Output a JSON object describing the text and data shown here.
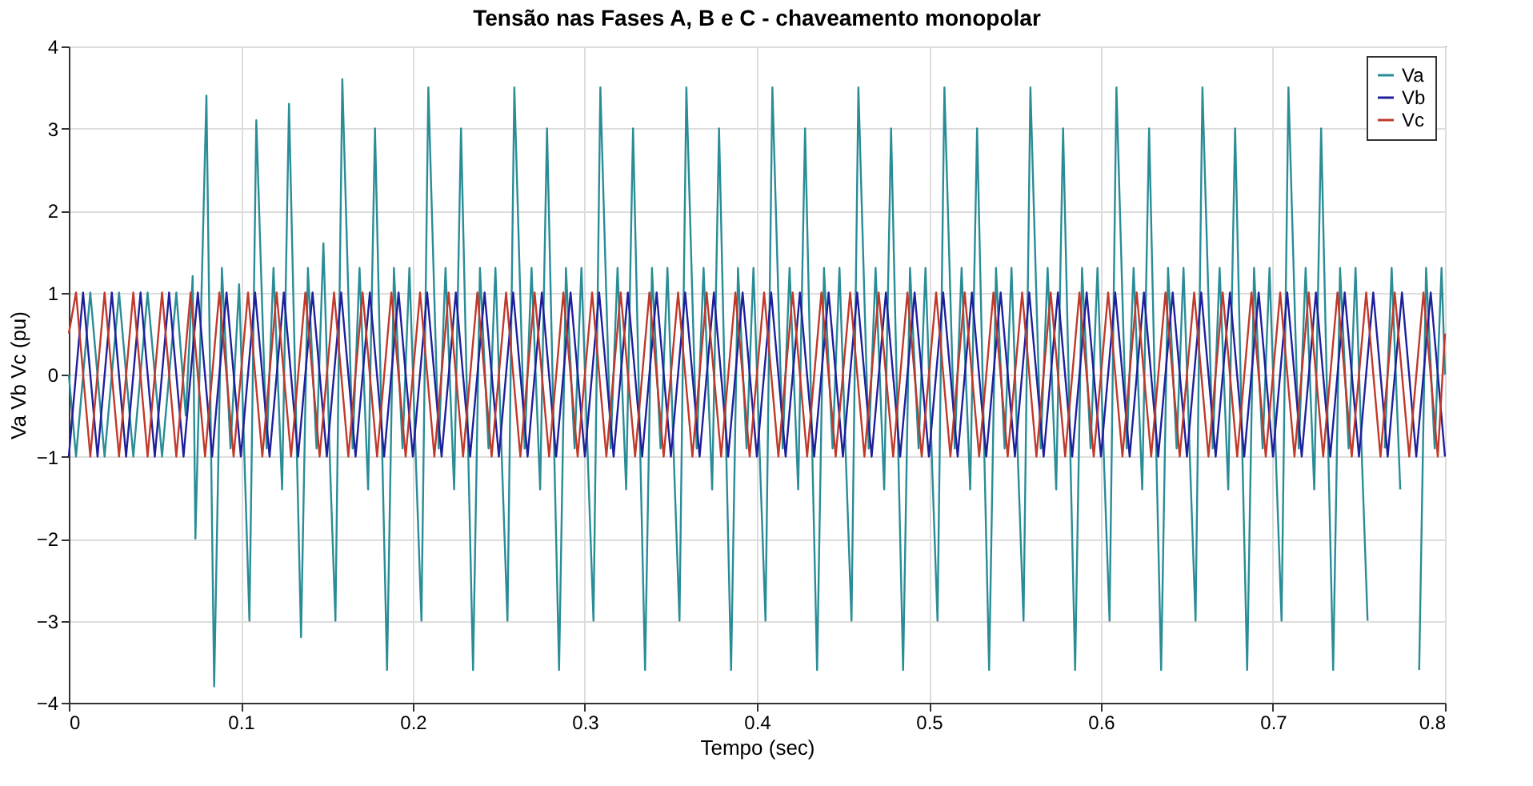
{
  "chart_data": {
    "type": "line",
    "title": "Tensão nas Fases A, B e C - chaveamento monopolar",
    "xlabel": "Tempo (sec)",
    "ylabel": "Va Vb Vc (pu)",
    "xlim": [
      0,
      0.8
    ],
    "xticks": [
      0,
      0.1,
      0.2,
      0.3,
      0.4,
      0.5,
      0.6,
      0.7,
      0.8
    ],
    "ylim": [
      -4,
      4
    ],
    "yticks": [
      -4,
      -3,
      -2,
      -1,
      0,
      1,
      2,
      3,
      4
    ],
    "grid": true,
    "legend": "top right",
    "marker": "none",
    "line_style": "solid",
    "series": [
      {
        "name": "Va",
        "color": "#2a8c96",
        "x": [
          0,
          0.0042,
          0.0125,
          0.0208,
          0.0292,
          0.0375,
          0.0458,
          0.0542,
          0.0625,
          0.068,
          0.072,
          0.0736,
          0.08,
          0.0845,
          0.089,
          0.094,
          0.099,
          0.105,
          0.109,
          0.115,
          0.119,
          0.124,
          0.128,
          0.135,
          0.139,
          0.144,
          0.148,
          0.152,
          0.155,
          0.159,
          0.165,
          0.169,
          0.174,
          0.178,
          0.185,
          0.189,
          0.194,
          0.198,
          0.202,
          0.205,
          0.209,
          0.215,
          0.219,
          0.224,
          0.228,
          0.235,
          0.239,
          0.244,
          0.248,
          0.252,
          0.255,
          0.259,
          0.265,
          0.269,
          0.274,
          0.278,
          0.285,
          0.289,
          0.294,
          0.298,
          0.302,
          0.305,
          0.309,
          0.315,
          0.319,
          0.324,
          0.328,
          0.335,
          0.339,
          0.344,
          0.348,
          0.352,
          0.355,
          0.359,
          0.365,
          0.369,
          0.374,
          0.378,
          0.385,
          0.389,
          0.394,
          0.398,
          0.402,
          0.405,
          0.409,
          0.415,
          0.419,
          0.424,
          0.428,
          0.435,
          0.439,
          0.444,
          0.448,
          0.452,
          0.455,
          0.459,
          0.465,
          0.469,
          0.474,
          0.478,
          0.485,
          0.489,
          0.494,
          0.498,
          0.502,
          0.505,
          0.509,
          0.515,
          0.519,
          0.524,
          0.528,
          0.535,
          0.539,
          0.544,
          0.548,
          0.552,
          0.555,
          0.559,
          0.565,
          0.569,
          0.574,
          0.578,
          0.585,
          0.589,
          0.594,
          0.598,
          0.602,
          0.605,
          0.609,
          0.615,
          0.619,
          0.624,
          0.628,
          0.635,
          0.639,
          0.644,
          0.648,
          0.652,
          0.655,
          0.659,
          0.665,
          0.669,
          0.674,
          0.678,
          0.685,
          0.689,
          0.694,
          0.698,
          0.702,
          0.705,
          0.709,
          0.715,
          0.719,
          0.724,
          0.728,
          0.735,
          0.739,
          0.744,
          0.748,
          0.752,
          0.755,
          0.759,
          0.765,
          0.769,
          0.774,
          0.778,
          0.785,
          0.789,
          0.794,
          0.798,
          0.8
        ],
        "values": [
          0,
          -1,
          1,
          -1,
          1,
          -1,
          1,
          -1,
          1,
          -0.5,
          1.2,
          -2.0,
          3.4,
          -3.8,
          1.3,
          -0.9,
          1.1,
          -3.0,
          3.1,
          -0.9,
          1.3,
          -1.4,
          3.3,
          -3.2,
          1.3,
          -0.9,
          1.6,
          -1.2,
          -3.0,
          3.6,
          -0.9,
          1.3,
          -1.4,
          3.0,
          -3.6,
          1.3,
          -0.9,
          1.3,
          -1.2,
          -3.0,
          3.5,
          -0.9,
          1.3,
          -1.4,
          3.0,
          -3.6,
          1.3,
          -0.9,
          1.3,
          -1.2,
          -3.0,
          3.5,
          -0.9,
          1.3,
          -1.4,
          3.0,
          -3.6,
          1.3,
          -0.9,
          1.3,
          -1.2,
          -3.0,
          3.5,
          -0.9,
          1.3,
          -1.4,
          3.0,
          -3.6,
          1.3,
          -0.9,
          1.3,
          -1.2,
          -3.0,
          3.5,
          -0.9,
          1.3,
          -1.4,
          3.0,
          -3.6,
          1.3,
          -0.9,
          1.3,
          -1.2,
          -3.0,
          3.5,
          -0.9,
          1.3,
          -1.4,
          3.0,
          -3.6,
          1.3,
          -0.9,
          1.3,
          -1.2,
          -3.0,
          3.5,
          -0.9,
          1.3,
          -1.4,
          3.0,
          -3.6,
          1.3,
          -0.9,
          1.3,
          -1.2,
          -3.0,
          3.5,
          -0.9,
          1.3,
          -1.4,
          3.0,
          -3.6,
          1.3,
          -0.9,
          1.3,
          -1.2,
          -3.0,
          3.5,
          -0.9,
          1.3,
          -1.4,
          3.0,
          -3.6,
          1.3,
          -0.9,
          1.3,
          -1.2,
          -3.0,
          3.5,
          -0.9,
          1.3,
          -1.4,
          3.0,
          -3.6,
          1.3,
          -0.9,
          1.3,
          -1.2,
          -3.0,
          3.5,
          -0.9,
          1.3,
          -1.4,
          3.0,
          -3.6,
          1.3,
          -0.9,
          1.3,
          -1.2,
          -3.0,
          3.5,
          -0.9,
          1.3,
          -1.4,
          3.0,
          -3.6,
          1.3,
          -0.9,
          1.3,
          -1.2,
          -3.0,
          null,
          -0.9,
          1.3,
          -1.4,
          null,
          -3.6,
          1.3,
          -0.9,
          1.3,
          0
        ]
      },
      {
        "name": "Vb",
        "color": "#1f1f9c",
        "x": [
          0,
          0.0083,
          0.0167,
          0.025,
          0.0333,
          0.0417,
          0.05,
          0.0583,
          0.0667,
          0.075,
          0.0833,
          0.0917,
          0.1,
          0.1083,
          0.1167,
          0.125,
          0.1333,
          0.1417,
          0.15,
          0.1583,
          0.1667,
          0.175,
          0.1833,
          0.1917,
          0.2,
          0.2083,
          0.2167,
          0.225,
          0.2333,
          0.2417,
          0.25,
          0.2583,
          0.2667,
          0.275,
          0.2833,
          0.2917,
          0.3,
          0.3083,
          0.3167,
          0.325,
          0.3333,
          0.3417,
          0.35,
          0.3583,
          0.3667,
          0.375,
          0.3833,
          0.3917,
          0.4,
          0.4083,
          0.4167,
          0.425,
          0.4333,
          0.4417,
          0.45,
          0.4583,
          0.4667,
          0.475,
          0.4833,
          0.4917,
          0.5,
          0.5083,
          0.5167,
          0.525,
          0.5333,
          0.5417,
          0.55,
          0.5583,
          0.5667,
          0.575,
          0.5833,
          0.5917,
          0.6,
          0.6083,
          0.6167,
          0.625,
          0.6333,
          0.6417,
          0.65,
          0.6583,
          0.6667,
          0.675,
          0.6833,
          0.6917,
          0.7,
          0.7083,
          0.7167,
          0.725,
          0.7333,
          0.7417,
          0.75,
          0.7583,
          0.7667,
          0.775,
          0.7833,
          0.7917,
          0.8
        ],
        "values": [
          -1,
          1,
          -1,
          1,
          -1,
          1,
          -1,
          1,
          -1,
          1,
          -1,
          1,
          -1,
          1,
          -1,
          1,
          -1,
          1,
          -1,
          1,
          -1,
          1,
          -1,
          1,
          -1,
          1,
          -1,
          1,
          -1,
          1,
          -1,
          1,
          -1,
          1,
          -1,
          1,
          -1,
          1,
          -1,
          1,
          -1,
          1,
          -1,
          1,
          -1,
          1,
          -1,
          1,
          -1,
          1,
          -1,
          1,
          -1,
          1,
          -1,
          1,
          -1,
          1,
          -1,
          1,
          -1,
          1,
          -1,
          1,
          -1,
          1,
          -1,
          1,
          -1,
          1,
          -1,
          1,
          -1,
          1,
          -1,
          1,
          -1,
          1,
          -1,
          1,
          -1,
          1,
          -1,
          1,
          -1,
          1,
          -1,
          1,
          -1,
          1,
          -1,
          1,
          -1,
          1,
          -1,
          1,
          -1
        ]
      },
      {
        "name": "Vc",
        "color": "#c0392b",
        "x": [
          0,
          0.0042,
          0.0125,
          0.0208,
          0.0292,
          0.0375,
          0.0458,
          0.0542,
          0.0625,
          0.0708,
          0.0792,
          0.0875,
          0.0958,
          0.1042,
          0.1125,
          0.1208,
          0.1292,
          0.1375,
          0.1458,
          0.1542,
          0.1625,
          0.1708,
          0.1792,
          0.1875,
          0.1958,
          0.2042,
          0.2125,
          0.2208,
          0.2292,
          0.2375,
          0.2458,
          0.2542,
          0.2625,
          0.2708,
          0.2792,
          0.2875,
          0.2958,
          0.3042,
          0.3125,
          0.3208,
          0.3292,
          0.3375,
          0.3458,
          0.3542,
          0.3625,
          0.3708,
          0.3792,
          0.3875,
          0.3958,
          0.4042,
          0.4125,
          0.4208,
          0.4292,
          0.4375,
          0.4458,
          0.4542,
          0.4625,
          0.4708,
          0.4792,
          0.4875,
          0.4958,
          0.5042,
          0.5125,
          0.5208,
          0.5292,
          0.5375,
          0.5458,
          0.5542,
          0.5625,
          0.5708,
          0.5792,
          0.5875,
          0.5958,
          0.6042,
          0.6125,
          0.6208,
          0.6292,
          0.6375,
          0.6458,
          0.6542,
          0.6625,
          0.6708,
          0.6792,
          0.6875,
          0.6958,
          0.7042,
          0.7125,
          0.7208,
          0.7292,
          0.7375,
          0.7458,
          0.7542,
          0.7625,
          0.7708,
          0.7792,
          0.7875,
          0.7958,
          0.8
        ],
        "values": [
          0.5,
          1,
          -1,
          1,
          -1,
          1,
          -1,
          1,
          -1,
          1,
          -1,
          1,
          -1,
          1,
          -1,
          1,
          -1,
          1,
          -1,
          1,
          -1,
          1,
          -1,
          1,
          -1,
          1,
          -1,
          1,
          -1,
          1,
          -1,
          1,
          -1,
          1,
          -1,
          1,
          -1,
          1,
          -1,
          1,
          -1,
          1,
          -1,
          1,
          -1,
          1,
          -1,
          1,
          -1,
          1,
          -1,
          1,
          -1,
          1,
          -1,
          1,
          -1,
          1,
          -1,
          1,
          -1,
          1,
          -1,
          1,
          -1,
          1,
          -1,
          1,
          -1,
          1,
          -1,
          1,
          -1,
          1,
          -1,
          1,
          -1,
          1,
          -1,
          1,
          -1,
          1,
          -1,
          1,
          -1,
          1,
          -1,
          1,
          -1,
          1,
          -1,
          1,
          -1,
          1,
          -1,
          1,
          -1,
          0.5
        ]
      }
    ]
  }
}
